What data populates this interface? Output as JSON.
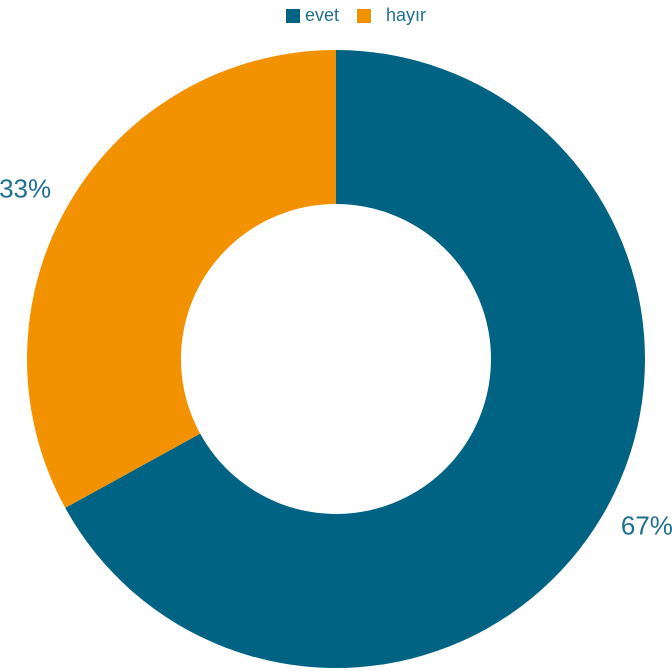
{
  "chart_data": {
    "type": "pie",
    "donut": true,
    "title": "",
    "categories": [
      "evet",
      "hayır"
    ],
    "values": [
      67,
      33
    ],
    "labels": [
      "67%",
      "33%"
    ],
    "colors": [
      "#006383",
      "#f39200"
    ],
    "label_color": "#1f6f8f",
    "legend": {
      "position": "top",
      "entries": [
        "evet",
        "hayır"
      ]
    }
  }
}
